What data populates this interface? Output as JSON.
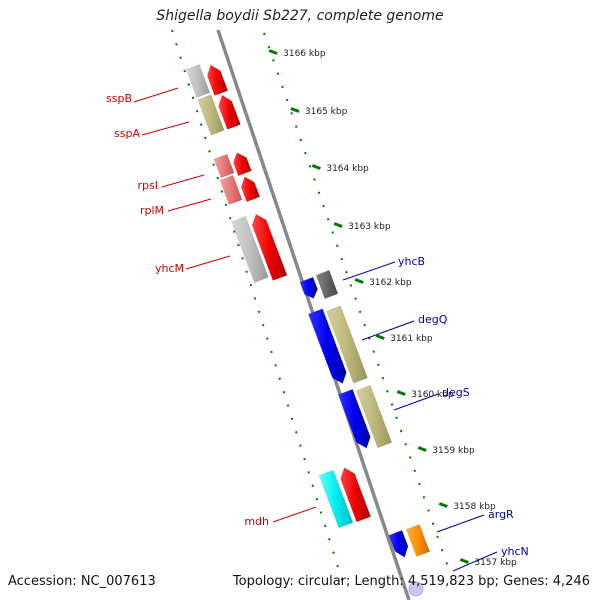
{
  "header": {
    "title": "Shigella boydii Sb227, complete genome"
  },
  "footer": {
    "accession": "Accession: NC_007613",
    "summary": "Topology: circular; Length: 4,519,823 bp; Genes: 4,246"
  },
  "ruler": {
    "ticks": [
      "3166 kbp",
      "3165 kbp",
      "3164 kbp",
      "3163 kbp",
      "3162 kbp",
      "3161 kbp",
      "3160 kbp",
      "3159 kbp",
      "3158 kbp",
      "3157 kbp"
    ]
  },
  "genes": {
    "left": [
      "sspB",
      "sspA",
      "rpsI",
      "rplM",
      "yhcM",
      "mdh"
    ],
    "right": [
      "yhcB",
      "degQ",
      "degS",
      "argR",
      "yhcN"
    ]
  },
  "colors": {
    "left_label": "#cc0000",
    "right_label": "#0000aa",
    "tick_mark": "#007700",
    "backbone": "#888888"
  }
}
